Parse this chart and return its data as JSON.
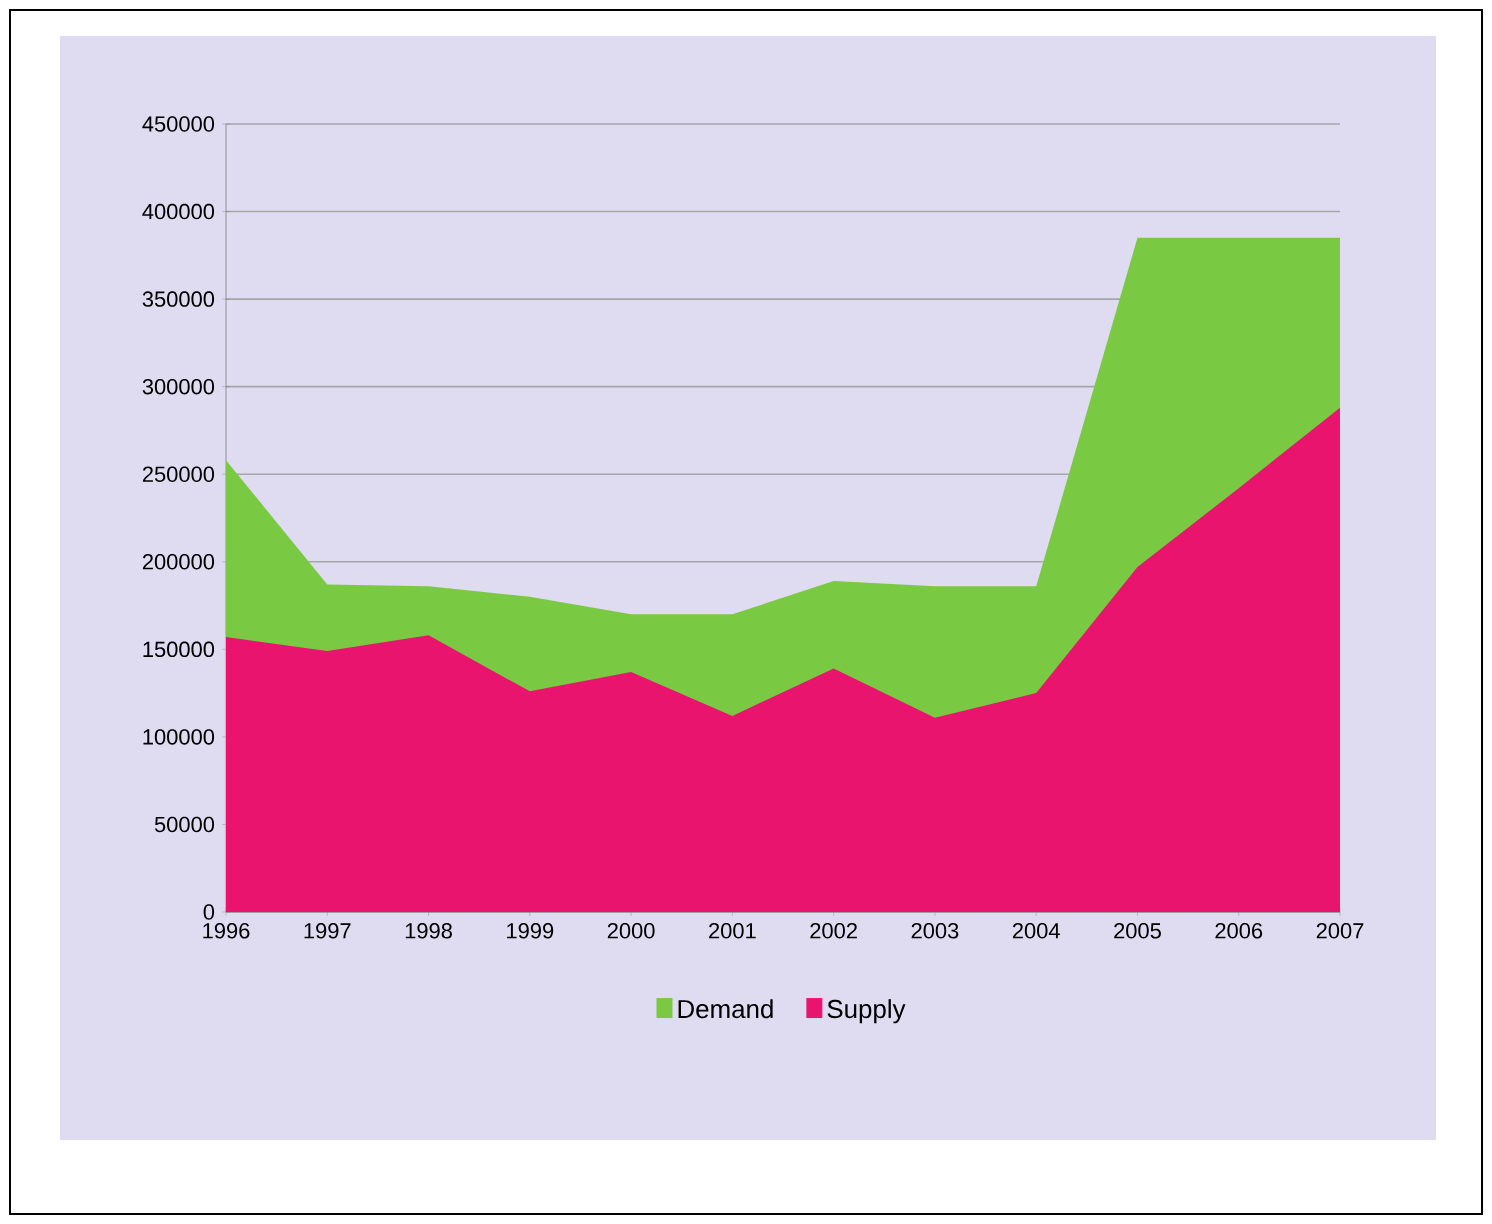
{
  "chart_data": {
    "type": "area",
    "categories": [
      "1996",
      "1997",
      "1998",
      "1999",
      "2000",
      "2001",
      "2002",
      "2003",
      "2004",
      "2005",
      "2006",
      "2007"
    ],
    "series": [
      {
        "name": "Demand",
        "color": "#7ac943",
        "values": [
          258000,
          187000,
          186000,
          180000,
          170000,
          170000,
          189000,
          186000,
          186000,
          385000,
          385000,
          385000
        ]
      },
      {
        "name": "Supply",
        "color": "#e8146e",
        "values": [
          157000,
          149000,
          158000,
          126000,
          137000,
          112000,
          139000,
          111000,
          125000,
          197000,
          242000,
          288000
        ]
      }
    ],
    "ylim": [
      0,
      450000
    ],
    "yticks": [
      0,
      50000,
      100000,
      150000,
      200000,
      250000,
      300000,
      350000,
      400000,
      450000
    ],
    "grid": "y",
    "legend": "bottom"
  }
}
